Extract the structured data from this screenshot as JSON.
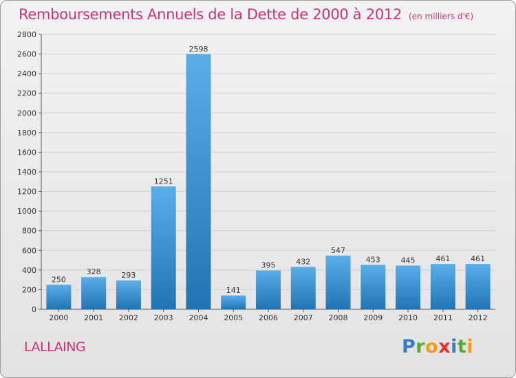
{
  "title": "Remboursements Annuels de la Dette de 2000 à 2012",
  "unit_note": "(en milliers d'€)",
  "commune": "LALLAING",
  "logo": {
    "text": "Proxiti",
    "letters": [
      "P",
      "r",
      "o",
      "x",
      "i",
      "t",
      "i"
    ]
  },
  "colors": {
    "accent": "#cc3377",
    "bar_light": "#5aaee8",
    "bar_dark": "#2273b3"
  },
  "chart_data": {
    "type": "bar",
    "categories": [
      "2000",
      "2001",
      "2002",
      "2003",
      "2004",
      "2005",
      "2006",
      "2007",
      "2008",
      "2009",
      "2010",
      "2011",
      "2012"
    ],
    "values": [
      250,
      328,
      293,
      1251,
      2598,
      141,
      395,
      432,
      547,
      453,
      445,
      461,
      461
    ],
    "ylim": [
      0,
      2800
    ],
    "yticks": [
      0,
      200,
      400,
      600,
      800,
      1000,
      1200,
      1400,
      1600,
      1800,
      2000,
      2200,
      2400,
      2600,
      2800
    ],
    "grid": true,
    "data_labels": true
  }
}
